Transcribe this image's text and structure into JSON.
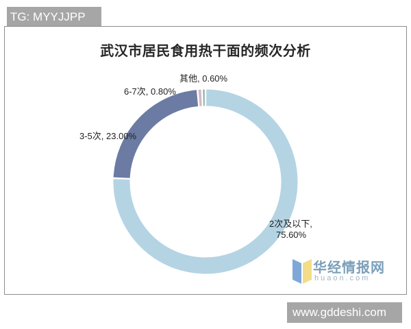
{
  "watermark_top": "TG: MYYJJPP",
  "watermark_bottom": "www.gddeshi.com",
  "logo": {
    "cn": "华经情报网",
    "en": "huaon.com"
  },
  "chart_data": {
    "type": "pie",
    "subtype": "doughnut",
    "title": "武汉市居民食用热干面的频次分析",
    "categories": [
      "2次及以下",
      "3-5次",
      "6-7次",
      "其他"
    ],
    "values": [
      75.6,
      23.0,
      0.8,
      0.6
    ],
    "unit": "%",
    "colors": [
      "#b4d4e4",
      "#6b7ba3",
      "#d4b8c6",
      "#8fb0a8"
    ],
    "labels": [
      {
        "category": "2次及以下",
        "text": "2次及以下,",
        "value_text": "75.60%"
      },
      {
        "category": "3-5次",
        "text": "3-5次, 23.00%"
      },
      {
        "category": "6-7次",
        "text": "6-7次, 0.80%"
      },
      {
        "category": "其他",
        "text": "其他, 0.60%"
      }
    ],
    "legend": "none",
    "data_labels": "category, percent"
  }
}
